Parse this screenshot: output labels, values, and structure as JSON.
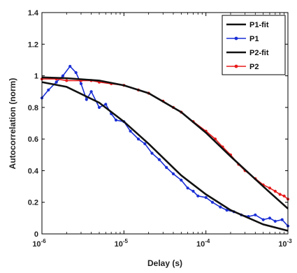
{
  "chart_data": {
    "type": "line",
    "xlabel": "Delay (s)",
    "ylabel": "Autocorrelation (norm)",
    "x_scale": "log",
    "xlim": [
      1e-06,
      0.001
    ],
    "ylim": [
      0,
      1.4
    ],
    "x_ticks": [
      1e-06,
      1e-05,
      0.0001,
      0.001
    ],
    "x_tick_base": "10",
    "x_tick_exponents": [
      "-6",
      "-5",
      "-4",
      "-3"
    ],
    "y_ticks": [
      0,
      0.2,
      0.4,
      0.6,
      0.8,
      1,
      1.2,
      1.4
    ],
    "y_tick_labels": [
      "0",
      "0.2",
      "0.4",
      "0.6",
      "0.8",
      "1",
      "1.2",
      "1.4"
    ],
    "grid": false,
    "legend_position": "top-right",
    "series": [
      {
        "name": "P1-fit",
        "kind": "fit",
        "color": "#111111",
        "x": [
          1e-06,
          2e-06,
          5e-06,
          1e-05,
          2e-05,
          5e-05,
          0.0001,
          0.0002,
          0.0005,
          0.001
        ],
        "y": [
          0.96,
          0.93,
          0.83,
          0.71,
          0.57,
          0.37,
          0.25,
          0.15,
          0.06,
          0.02
        ]
      },
      {
        "name": "P1",
        "kind": "data",
        "color": "#1a2fd6",
        "x": [
          1e-06,
          1.2e-06,
          1.5e-06,
          1.8e-06,
          2.2e-06,
          2.6e-06,
          3e-06,
          3.5e-06,
          4e-06,
          5e-06,
          6e-06,
          7e-06,
          8e-06,
          1e-05,
          1.2e-05,
          1.5e-05,
          1.8e-05,
          2.2e-05,
          2.7e-05,
          3.3e-05,
          4e-05,
          5e-05,
          6e-05,
          7e-05,
          8e-05,
          0.0001,
          0.00012,
          0.00015,
          0.00018,
          0.00022,
          0.00027,
          0.00033,
          0.0004,
          0.0005,
          0.0006,
          0.0007,
          0.00085,
          0.001
        ],
        "y": [
          0.86,
          0.91,
          0.96,
          1.0,
          1.06,
          1.02,
          0.95,
          0.85,
          0.9,
          0.8,
          0.82,
          0.76,
          0.72,
          0.71,
          0.65,
          0.6,
          0.57,
          0.51,
          0.47,
          0.42,
          0.38,
          0.34,
          0.29,
          0.27,
          0.24,
          0.23,
          0.2,
          0.17,
          0.15,
          0.14,
          0.12,
          0.11,
          0.12,
          0.09,
          0.1,
          0.08,
          0.09,
          0.05
        ]
      },
      {
        "name": "P2-fit",
        "kind": "fit",
        "color": "#111111",
        "x": [
          1e-06,
          2e-06,
          5e-06,
          1e-05,
          2e-05,
          5e-05,
          0.0001,
          0.0002,
          0.0005,
          0.001
        ],
        "y": [
          0.99,
          0.985,
          0.97,
          0.94,
          0.89,
          0.77,
          0.64,
          0.49,
          0.3,
          0.16
        ]
      },
      {
        "name": "P2",
        "kind": "data",
        "color": "#e81a1a",
        "x": [
          1e-06,
          1.5e-06,
          2e-06,
          3e-06,
          4e-06,
          5e-06,
          7e-06,
          1e-05,
          1.5e-05,
          2e-05,
          3e-05,
          4e-05,
          5e-05,
          7e-05,
          0.0001,
          0.00013,
          0.00016,
          0.0002,
          0.00025,
          0.0003,
          0.0004,
          0.0005,
          0.0006,
          0.0007,
          0.0008,
          0.0009,
          0.001
        ],
        "y": [
          0.98,
          0.98,
          0.97,
          0.97,
          0.97,
          0.96,
          0.95,
          0.94,
          0.91,
          0.89,
          0.84,
          0.8,
          0.77,
          0.71,
          0.65,
          0.6,
          0.55,
          0.5,
          0.44,
          0.4,
          0.35,
          0.31,
          0.29,
          0.27,
          0.25,
          0.24,
          0.22
        ]
      }
    ]
  }
}
